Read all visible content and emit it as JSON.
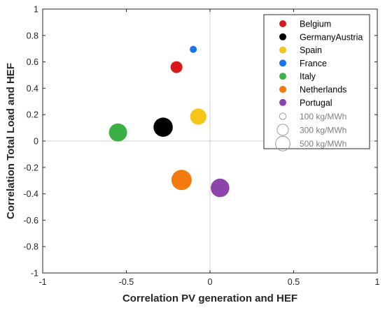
{
  "chart_data": {
    "type": "scatter",
    "title": "",
    "xlabel": "Correlation PV generation and HEF",
    "ylabel": "Correlation Total Load and HEF",
    "xlim": [
      -1,
      1
    ],
    "ylim": [
      -1,
      1
    ],
    "x_ticks": [
      -1,
      -0.5,
      0,
      0.5,
      1
    ],
    "y_ticks": [
      -1,
      -0.8,
      -0.6,
      -0.4,
      -0.2,
      0,
      0.2,
      0.4,
      0.6,
      0.8,
      1
    ],
    "x_tick_labels": [
      "-1",
      "-0.5",
      "0",
      "0.5",
      "1"
    ],
    "y_tick_labels": [
      "-1",
      "-0.8",
      "-0.6",
      "-0.4",
      "-0.2",
      "0",
      "0.2",
      "0.4",
      "0.6",
      "0.8",
      "1"
    ],
    "grid": false,
    "zero_lines": true,
    "legend_position": "top-right",
    "size_unit": "kg/MWh",
    "series": [
      {
        "name": "Belgium",
        "color": "#d7191c",
        "x": -0.2,
        "y": 0.56,
        "size": 170
      },
      {
        "name": "GermanyAustria",
        "color": "#000000",
        "x": -0.28,
        "y": 0.105,
        "size": 450
      },
      {
        "name": "Spain",
        "color": "#f5c518",
        "x": -0.07,
        "y": 0.185,
        "size": 320
      },
      {
        "name": "France",
        "color": "#1a73e8",
        "x": -0.1,
        "y": 0.695,
        "size": 60
      },
      {
        "name": "Italy",
        "color": "#3cb043",
        "x": -0.55,
        "y": 0.065,
        "size": 400
      },
      {
        "name": "Netherlands",
        "color": "#f37a0c",
        "x": -0.17,
        "y": -0.295,
        "size": 500
      },
      {
        "name": "Portugal",
        "color": "#8e44ad",
        "x": 0.06,
        "y": -0.355,
        "size": 420
      }
    ],
    "size_legend": [
      {
        "label": "100 kg/MWh",
        "value": 100
      },
      {
        "label": "300 kg/MWh",
        "value": 300
      },
      {
        "label": "500 kg/MWh",
        "value": 500
      }
    ]
  }
}
